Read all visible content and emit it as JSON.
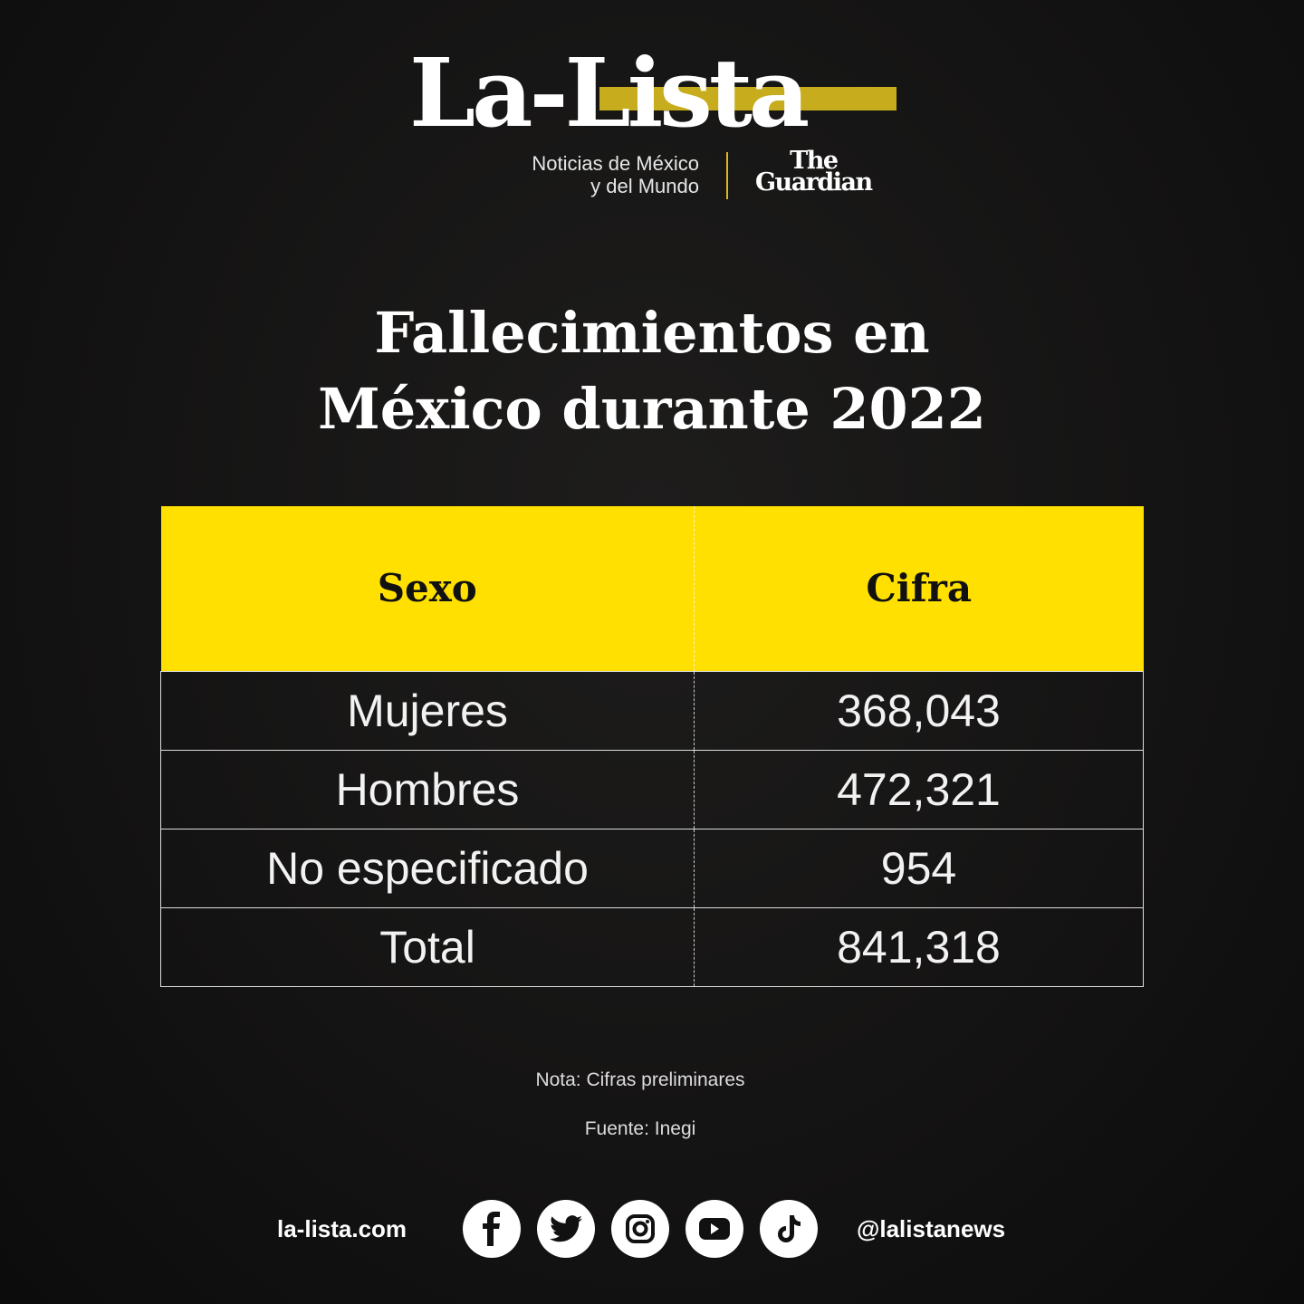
{
  "brand": {
    "logo": "La-Lista",
    "tagline_1": "Noticias de México",
    "tagline_2": "y del Mundo",
    "partner_1": "The",
    "partner_2": "Guardian",
    "accent": "#ffe000"
  },
  "title_1": "Fallecimientos en",
  "title_2": "México durante 2022",
  "table": {
    "headers": [
      "Sexo",
      "Cifra"
    ],
    "rows": [
      [
        "Mujeres",
        "368,043"
      ],
      [
        "Hombres",
        "472,321"
      ],
      [
        "No especificado",
        "954"
      ],
      [
        "Total",
        "841,318"
      ]
    ]
  },
  "note": "Nota: Cifras preliminares",
  "source": "Fuente: Inegi",
  "footer": {
    "site": "la-lista.com",
    "handle": "@lalistanews",
    "icons": [
      "facebook-icon",
      "twitter-icon",
      "instagram-icon",
      "youtube-icon",
      "tiktok-icon"
    ]
  }
}
